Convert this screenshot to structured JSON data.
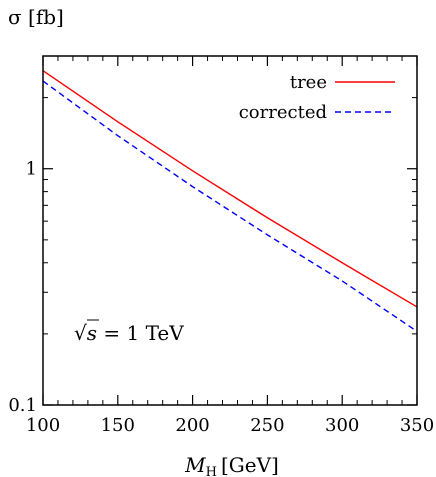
{
  "chart_data": {
    "type": "line",
    "xlabel": "M_H [GeV]",
    "xlabel_main": "M",
    "xlabel_sub": "H",
    "xlabel_unit": "[GeV]",
    "ylabel": "σ [fb]",
    "yscale": "log",
    "xlim": [
      100,
      350
    ],
    "ylim": [
      0.1,
      3.0
    ],
    "x_ticks": [
      100,
      150,
      200,
      250,
      300,
      350
    ],
    "x_tick_labels": [
      "100",
      "150",
      "200",
      "250",
      "300",
      "350"
    ],
    "y_ticks": [
      0.1,
      1
    ],
    "y_tick_labels": [
      "0.1",
      "1"
    ],
    "legend_position": "top-right",
    "annotation": "√s = 1 TeV",
    "annotation_parts": {
      "root": "√",
      "var": "s",
      "rest": " = 1 TeV"
    },
    "series": [
      {
        "name": "tree",
        "color": "#ff0000",
        "dash": "solid",
        "x": [
          100,
          150,
          200,
          250,
          300,
          350
        ],
        "y": [
          2.6,
          1.58,
          0.98,
          0.62,
          0.4,
          0.26
        ]
      },
      {
        "name": "corrected",
        "color": "#0000ff",
        "dash": "dashed",
        "x": [
          100,
          150,
          200,
          250,
          300,
          350
        ],
        "y": [
          2.35,
          1.38,
          0.84,
          0.525,
          0.335,
          0.205
        ]
      }
    ]
  }
}
